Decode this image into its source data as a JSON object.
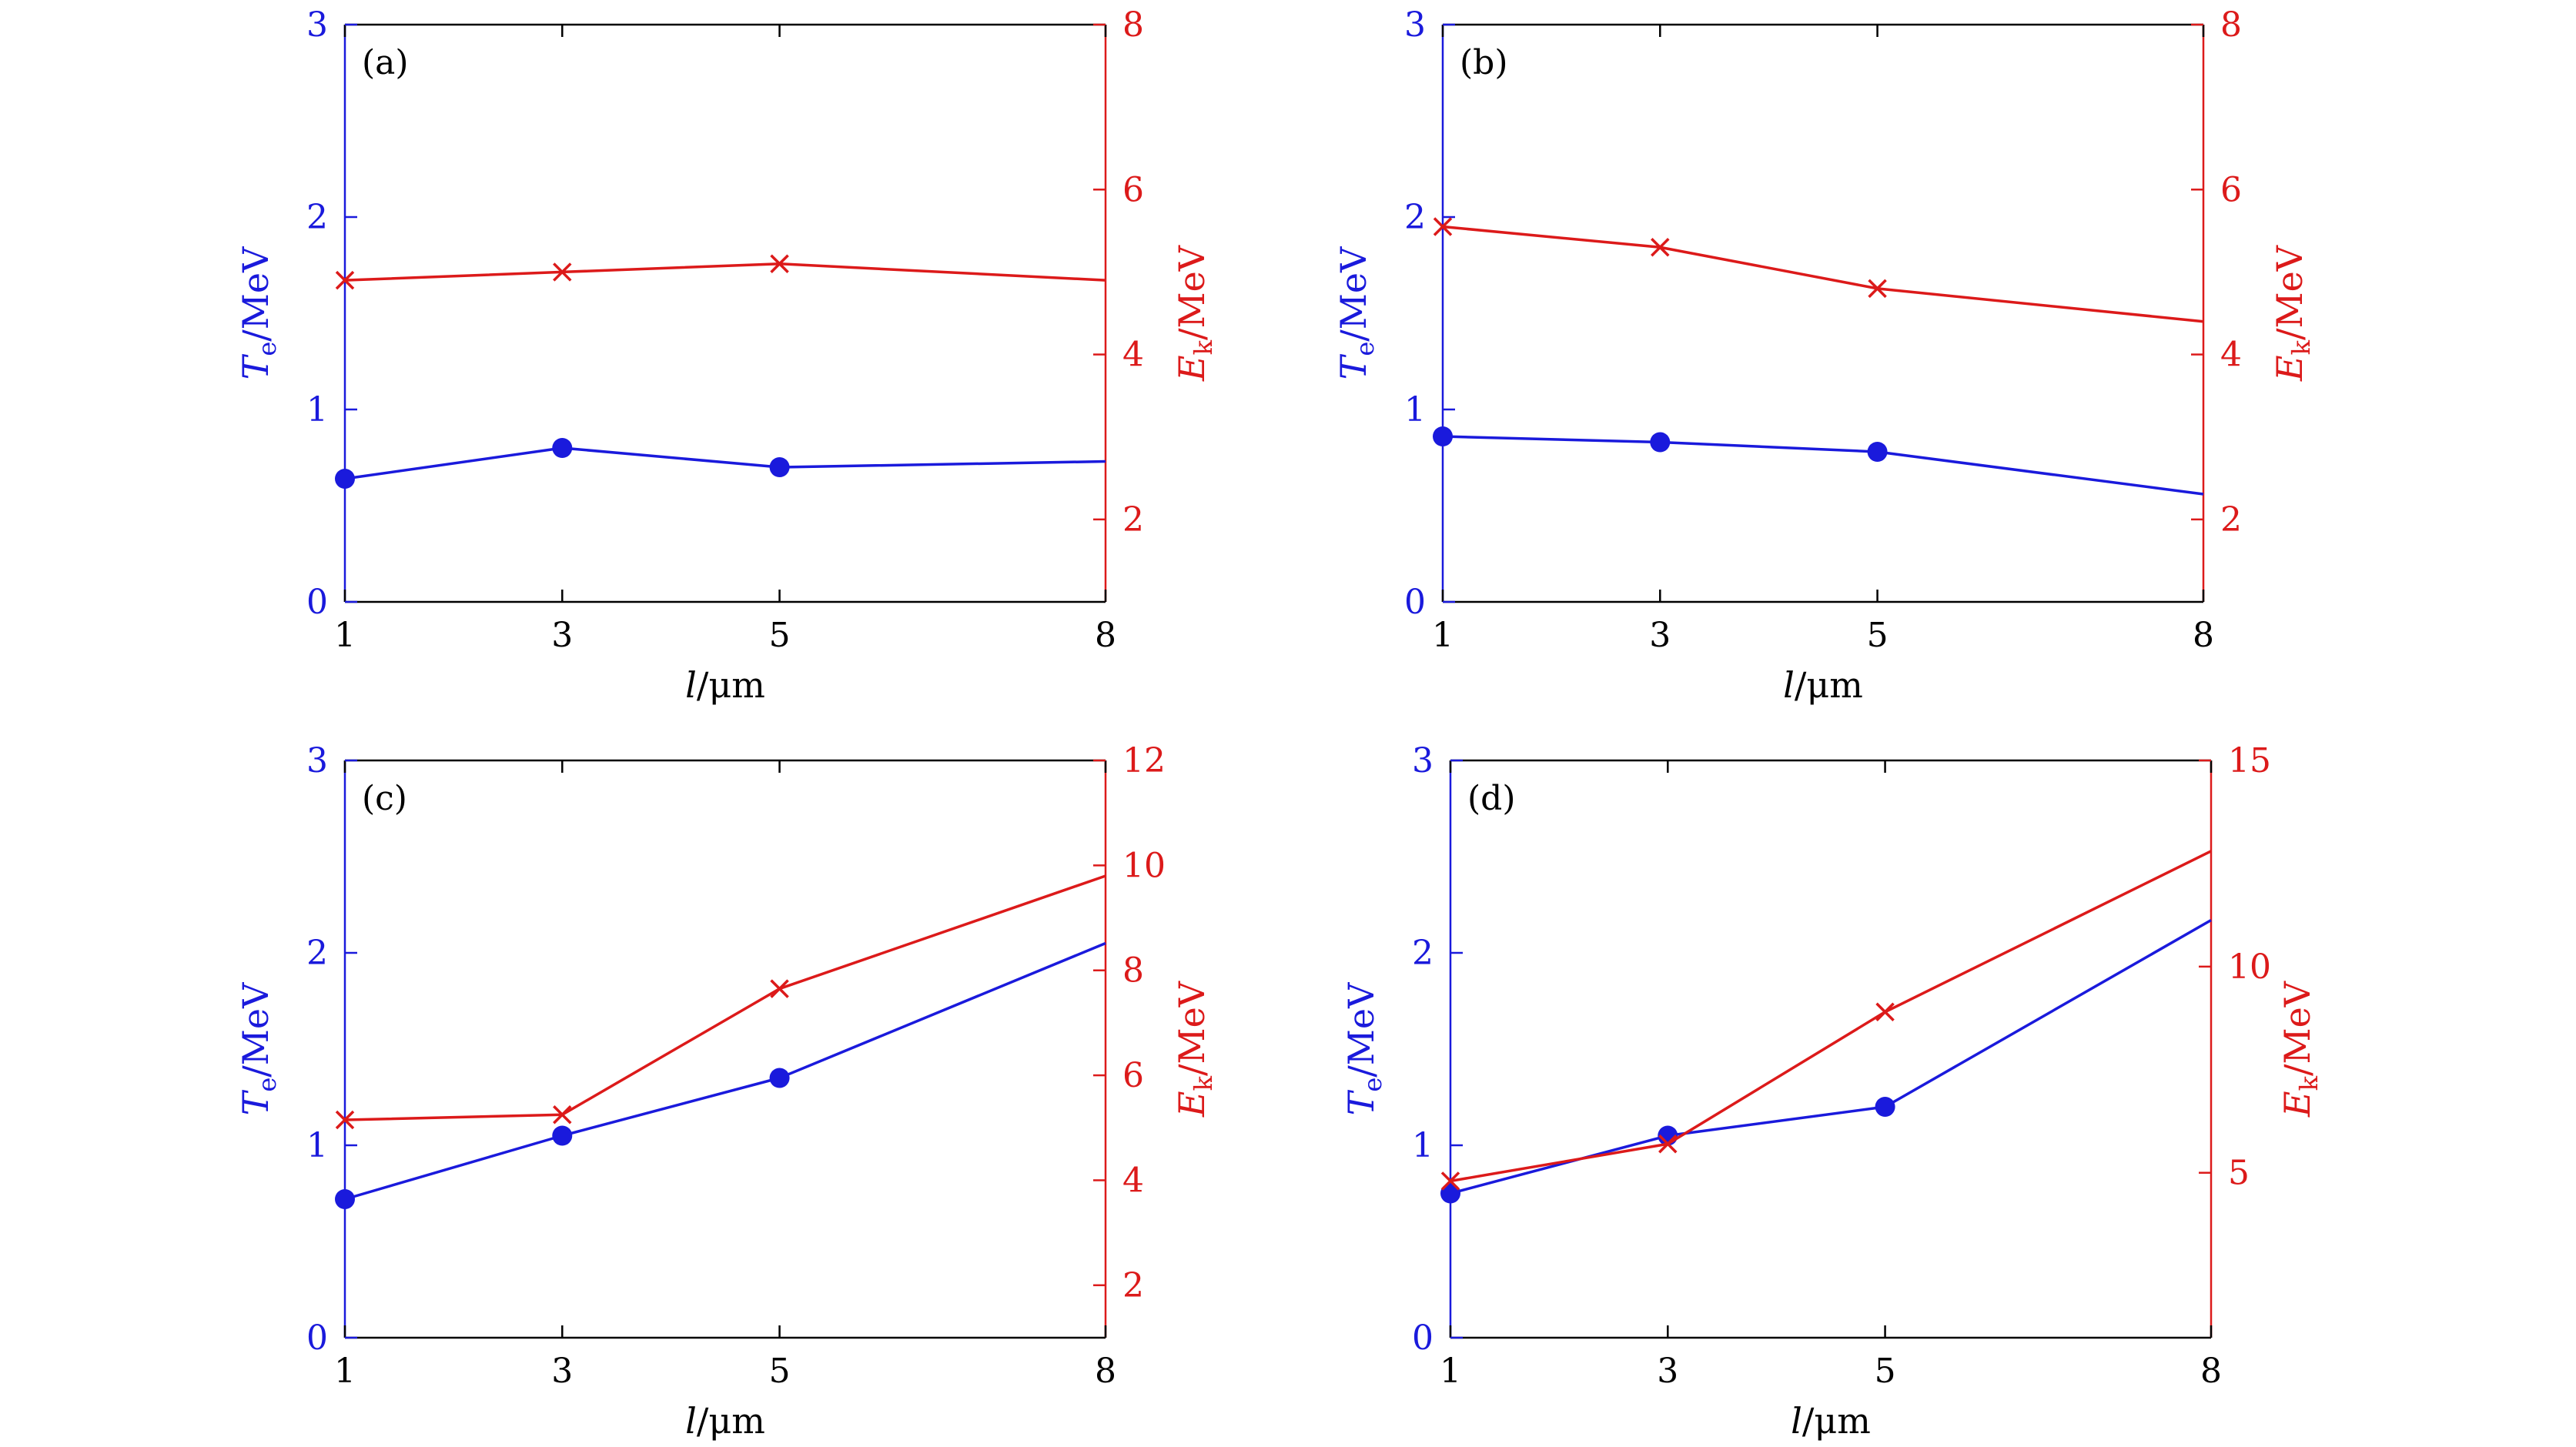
{
  "figure": {
    "colors": {
      "left_axis": "#1a1adc",
      "right_axis": "#dc1a1a",
      "frame": "#000000"
    }
  },
  "chart_data": [
    {
      "type": "line",
      "panel_label": "(a)",
      "x_tick_labels": [
        "1",
        "3",
        "5",
        "8"
      ],
      "x_tick_positions": [
        1,
        3,
        5,
        8
      ],
      "xlim": [
        1,
        8
      ],
      "xlabel": {
        "italic": "l",
        "rest": "/μm"
      },
      "ylabel_left": {
        "italic": "T",
        "sub": "e",
        "rest": "/MeV"
      },
      "ylabel_right": {
        "italic": "E",
        "sub": "k",
        "rest": "/MeV"
      },
      "ylim_left": [
        0,
        3
      ],
      "yticks_left": [
        "0",
        "1",
        "2",
        "3"
      ],
      "ylim_right": [
        1,
        8
      ],
      "yticks_right": [
        "2",
        "4",
        "6",
        "8"
      ],
      "series": [
        {
          "name": "Te",
          "axis": "left",
          "marker": "circle",
          "color": "#1a1adc",
          "x": [
            1,
            3,
            5,
            8
          ],
          "values": [
            0.64,
            0.8,
            0.7,
            0.73
          ],
          "marker_count": 3
        },
        {
          "name": "Ek",
          "axis": "right",
          "marker": "x",
          "color": "#dc1a1a",
          "x": [
            1,
            3,
            5,
            8
          ],
          "values": [
            4.9,
            5.0,
            5.1,
            4.9
          ],
          "marker_count": 3
        }
      ]
    },
    {
      "type": "line",
      "panel_label": "(b)",
      "x_tick_labels": [
        "1",
        "3",
        "5",
        "8"
      ],
      "x_tick_positions": [
        1,
        3,
        5,
        8
      ],
      "xlim": [
        1,
        8
      ],
      "xlabel": {
        "italic": "l",
        "rest": "/μm"
      },
      "ylabel_left": {
        "italic": "T",
        "sub": "e",
        "rest": "/MeV"
      },
      "ylabel_right": {
        "italic": "E",
        "sub": "k",
        "rest": "/MeV"
      },
      "ylim_left": [
        0,
        3
      ],
      "yticks_left": [
        "0",
        "1",
        "2",
        "3"
      ],
      "ylim_right": [
        1,
        8
      ],
      "yticks_right": [
        "2",
        "4",
        "6",
        "8"
      ],
      "series": [
        {
          "name": "Te",
          "axis": "left",
          "marker": "circle",
          "color": "#1a1adc",
          "x": [
            1,
            3,
            5,
            8
          ],
          "values": [
            0.86,
            0.83,
            0.78,
            0.56
          ],
          "marker_count": 3
        },
        {
          "name": "Ek",
          "axis": "right",
          "marker": "x",
          "color": "#dc1a1a",
          "x": [
            1,
            3,
            5,
            8
          ],
          "values": [
            5.55,
            5.3,
            4.8,
            4.4
          ],
          "marker_count": 3
        }
      ]
    },
    {
      "type": "line",
      "panel_label": "(c)",
      "x_tick_labels": [
        "1",
        "3",
        "5",
        "8"
      ],
      "x_tick_positions": [
        1,
        3,
        5,
        8
      ],
      "xlim": [
        1,
        8
      ],
      "xlabel": {
        "italic": "l",
        "rest": "/μm"
      },
      "ylabel_left": {
        "italic": "T",
        "sub": "e",
        "rest": "/MeV"
      },
      "ylabel_right": {
        "italic": "E",
        "sub": "k",
        "rest": "/MeV"
      },
      "ylim_left": [
        0,
        3
      ],
      "yticks_left": [
        "0",
        "1",
        "2",
        "3"
      ],
      "ylim_right": [
        1,
        12
      ],
      "yticks_right": [
        "2",
        "4",
        "6",
        "8",
        "10",
        "12"
      ],
      "series": [
        {
          "name": "Te",
          "axis": "left",
          "marker": "circle",
          "color": "#1a1adc",
          "x": [
            1,
            3,
            5,
            8
          ],
          "values": [
            0.72,
            1.05,
            1.35,
            2.05
          ],
          "marker_count": 3
        },
        {
          "name": "Ek",
          "axis": "right",
          "marker": "x",
          "color": "#dc1a1a",
          "x": [
            1,
            3,
            5,
            8
          ],
          "values": [
            5.15,
            5.25,
            7.65,
            9.8
          ],
          "marker_count": 3
        }
      ]
    },
    {
      "type": "line",
      "panel_label": "(d)",
      "x_tick_labels": [
        "1",
        "3",
        "5",
        "8"
      ],
      "x_tick_positions": [
        1,
        3,
        5,
        8
      ],
      "xlim": [
        1,
        8
      ],
      "xlabel": {
        "italic": "l",
        "rest": "/μm"
      },
      "ylabel_left": {
        "italic": "T",
        "sub": "e",
        "rest": "/MeV"
      },
      "ylabel_right": {
        "italic": "E",
        "sub": "k",
        "rest": "/MeV"
      },
      "ylim_left": [
        0,
        3
      ],
      "yticks_left": [
        "0",
        "1",
        "2",
        "3"
      ],
      "ylim_right": [
        1,
        15
      ],
      "yticks_right": [
        "5",
        "10",
        "15"
      ],
      "series": [
        {
          "name": "Te",
          "axis": "left",
          "marker": "circle",
          "color": "#1a1adc",
          "x": [
            1,
            3,
            5,
            8
          ],
          "values": [
            0.75,
            1.05,
            1.2,
            2.17
          ],
          "marker_count": 3
        },
        {
          "name": "Ek",
          "axis": "right",
          "marker": "x",
          "color": "#dc1a1a",
          "x": [
            1,
            3,
            5,
            8
          ],
          "values": [
            4.8,
            5.7,
            8.9,
            12.8
          ],
          "marker_count": 3
        }
      ]
    }
  ]
}
